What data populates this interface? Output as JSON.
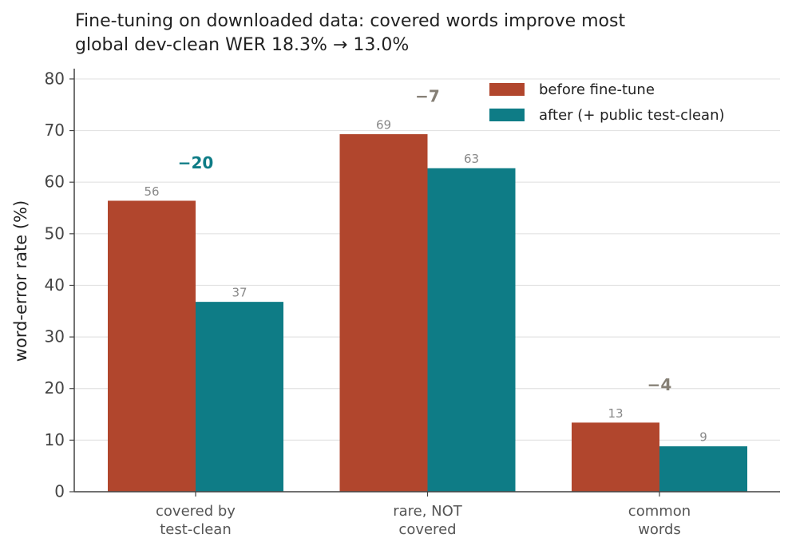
{
  "chart_data": {
    "type": "bar",
    "title": "Fine-tuning on downloaded data: covered words improve most",
    "subtitle": "global dev-clean WER 18.3% → 13.0%",
    "y_label": "word-error rate (%)",
    "categories": [
      [
        "covered by",
        "test-clean"
      ],
      [
        "rare, NOT",
        "covered"
      ],
      [
        "common",
        "words"
      ]
    ],
    "series": [
      {
        "name": "before fine-tune",
        "color": "#b1462d",
        "values": [
          56.4,
          69.3,
          13.4
        ],
        "value_labels": [
          "56",
          "69",
          "13"
        ]
      },
      {
        "name": "after (+ public test-clean)",
        "color": "#0e7c86",
        "values": [
          36.8,
          62.7,
          8.8
        ],
        "value_labels": [
          "37",
          "63",
          "9"
        ]
      }
    ],
    "annotations": [
      {
        "text": "−20",
        "color": "#0e7c86"
      },
      {
        "text": "−7",
        "color": "#857f75"
      },
      {
        "text": "−4",
        "color": "#857f75"
      }
    ],
    "ylim": [
      0,
      82
    ],
    "yticks": [
      0,
      10,
      20,
      30,
      40,
      50,
      60,
      70,
      80
    ],
    "grid": true,
    "legend": "upper right"
  }
}
